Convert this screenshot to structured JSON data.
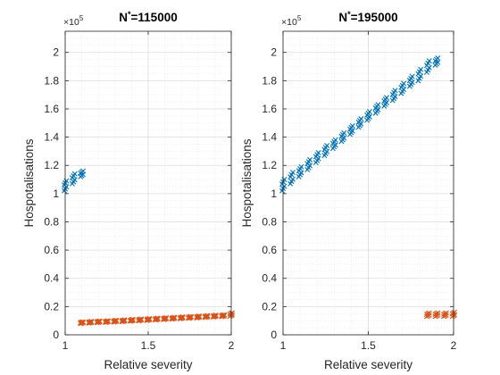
{
  "colors": {
    "series_high": "#0072BD",
    "series_low": "#D95319",
    "axis": "#262626",
    "grid": "#dddddd"
  },
  "chart_data": [
    {
      "type": "scatter",
      "title_prefix": "N",
      "title_sup": "*",
      "title_suffix": "=115000",
      "xlabel": "Relative severity",
      "ylabel": "Hospotalisations",
      "y_exponent_base": "×10",
      "y_exponent": "5",
      "xlim": [
        1,
        2
      ],
      "ylim": [
        0,
        2.15
      ],
      "y_scale": 100000,
      "grid": true,
      "minor_grid": true,
      "x_ticks": [
        1,
        1.5,
        2
      ],
      "x_tick_labels": [
        "1",
        "1.5",
        "2"
      ],
      "y_ticks": [
        0,
        0.2,
        0.4,
        0.6,
        0.8,
        1,
        1.2,
        1.4,
        1.6,
        1.8,
        2
      ],
      "y_tick_labels": [
        "0",
        "0.2",
        "0.4",
        "0.6",
        "0.8",
        "1",
        "1.2",
        "1.4",
        "1.6",
        "1.8",
        "2"
      ],
      "series": [
        {
          "marker": "x",
          "color_key": "series_high",
          "x": [
            1.0,
            1.05,
            1.1
          ],
          "y_low": [
            1.02,
            1.07,
            1.12
          ],
          "y_high": [
            1.09,
            1.14,
            1.16
          ]
        },
        {
          "marker": "x",
          "color_key": "series_low",
          "x": [
            1.1,
            1.15,
            1.2,
            1.25,
            1.3,
            1.35,
            1.4,
            1.45,
            1.5,
            1.55,
            1.6,
            1.65,
            1.7,
            1.75,
            1.8,
            1.85,
            1.9,
            1.95,
            2.0
          ],
          "y_low": [
            0.08,
            0.083,
            0.086,
            0.088,
            0.09,
            0.093,
            0.096,
            0.099,
            0.102,
            0.105,
            0.108,
            0.111,
            0.114,
            0.117,
            0.12,
            0.123,
            0.126,
            0.129,
            0.132
          ],
          "y_high": [
            0.092,
            0.095,
            0.098,
            0.1,
            0.103,
            0.106,
            0.109,
            0.112,
            0.115,
            0.118,
            0.121,
            0.124,
            0.127,
            0.13,
            0.133,
            0.136,
            0.139,
            0.142,
            0.156
          ]
        }
      ]
    },
    {
      "type": "scatter",
      "title_prefix": "N",
      "title_sup": "*",
      "title_suffix": "=195000",
      "xlabel": "Relative severity",
      "ylabel": "Hospotalisations",
      "y_exponent_base": "×10",
      "y_exponent": "5",
      "xlim": [
        1,
        2
      ],
      "ylim": [
        0,
        2.15
      ],
      "y_scale": 100000,
      "grid": true,
      "minor_grid": true,
      "x_ticks": [
        1,
        1.5,
        2
      ],
      "x_tick_labels": [
        "1",
        "1.5",
        "2"
      ],
      "y_ticks": [
        0,
        0.2,
        0.4,
        0.6,
        0.8,
        1,
        1.2,
        1.4,
        1.6,
        1.8,
        2
      ],
      "y_tick_labels": [
        "0",
        "0.2",
        "0.4",
        "0.6",
        "0.8",
        "1",
        "1.2",
        "1.4",
        "1.6",
        "1.8",
        "2"
      ],
      "series": [
        {
          "marker": "x",
          "color_key": "series_high",
          "x": [
            1.0,
            1.05,
            1.1,
            1.15,
            1.2,
            1.25,
            1.3,
            1.35,
            1.4,
            1.45,
            1.5,
            1.55,
            1.6,
            1.65,
            1.7,
            1.75,
            1.8,
            1.85,
            1.9
          ],
          "y_low": [
            1.02,
            1.07,
            1.12,
            1.17,
            1.22,
            1.27,
            1.32,
            1.37,
            1.42,
            1.47,
            1.52,
            1.57,
            1.62,
            1.66,
            1.71,
            1.76,
            1.8,
            1.86,
            1.91
          ],
          "y_high": [
            1.1,
            1.15,
            1.19,
            1.24,
            1.29,
            1.34,
            1.38,
            1.43,
            1.48,
            1.53,
            1.58,
            1.63,
            1.68,
            1.73,
            1.78,
            1.83,
            1.88,
            1.94,
            1.96
          ]
        },
        {
          "marker": "x",
          "color_key": "series_low",
          "x": [
            1.85,
            1.9,
            1.95,
            2.0
          ],
          "y_low": [
            0.13,
            0.13,
            0.13,
            0.13
          ],
          "y_high": [
            0.155,
            0.155,
            0.155,
            0.16
          ]
        }
      ]
    }
  ]
}
